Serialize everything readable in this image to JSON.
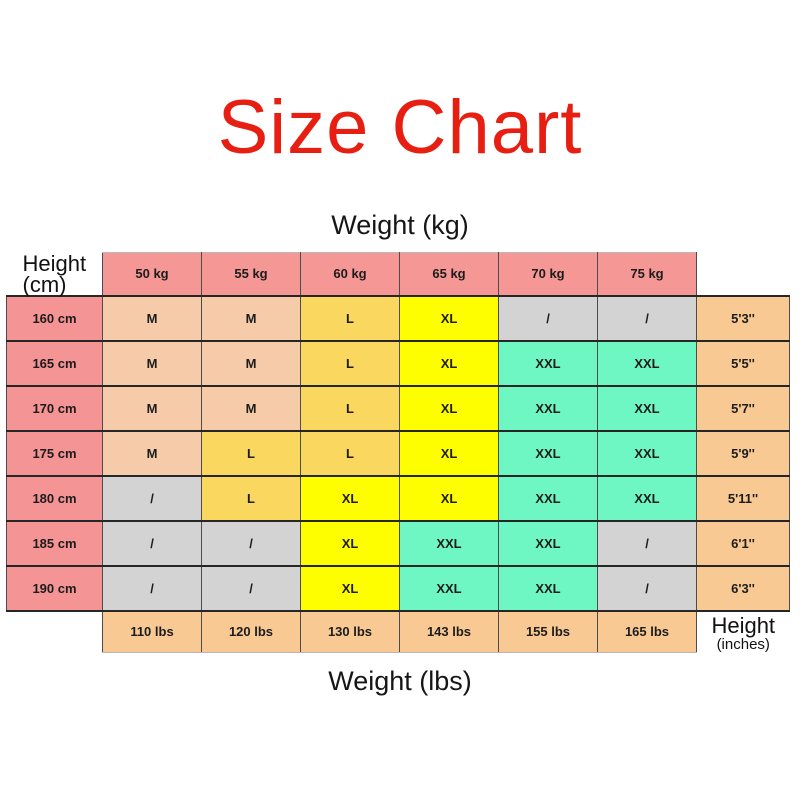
{
  "title": "Size Chart",
  "labels": {
    "weight_kg": "Weight (kg)",
    "weight_lbs": "Weight (lbs)",
    "height_cm_line1": "Height",
    "height_cm_line2": "(cm)",
    "height_in_line1": "Height",
    "height_in_line2": "(inches)"
  },
  "colors": {
    "title-red": "#e71f13",
    "text-dark": "#1a1a1a",
    "header-pink": "#f59795",
    "row-pink": "#f59494",
    "peach-band": "#f9c994"
  },
  "chart_data": {
    "type": "table",
    "title": "Size Chart",
    "top_axis": "Weight (kg)",
    "bottom_axis": "Weight (lbs)",
    "weight_kg_headers": [
      "50 kg",
      "55 kg",
      "60 kg",
      "65 kg",
      "70 kg",
      "75 kg"
    ],
    "weight_lbs_footers": [
      "110 lbs",
      "120 lbs",
      "130 lbs",
      "143 lbs",
      "155 lbs",
      "165 lbs"
    ],
    "rows": [
      {
        "height_cm": "160 cm",
        "height_in": "5'3''",
        "sizes": [
          "M",
          "M",
          "L",
          "XL",
          "/",
          "/"
        ]
      },
      {
        "height_cm": "165 cm",
        "height_in": "5'5''",
        "sizes": [
          "M",
          "M",
          "L",
          "XL",
          "XXL",
          "XXL"
        ]
      },
      {
        "height_cm": "170 cm",
        "height_in": "5'7''",
        "sizes": [
          "M",
          "M",
          "L",
          "XL",
          "XXL",
          "XXL"
        ]
      },
      {
        "height_cm": "175 cm",
        "height_in": "5'9''",
        "sizes": [
          "M",
          "L",
          "L",
          "XL",
          "XXL",
          "XXL"
        ]
      },
      {
        "height_cm": "180 cm",
        "height_in": "5'11''",
        "sizes": [
          "/",
          "L",
          "XL",
          "XL",
          "XXL",
          "XXL"
        ]
      },
      {
        "height_cm": "185 cm",
        "height_in": "6'1''",
        "sizes": [
          "/",
          "/",
          "XL",
          "XXL",
          "XXL",
          "/"
        ]
      },
      {
        "height_cm": "190 cm",
        "height_in": "6'3''",
        "sizes": [
          "/",
          "/",
          "XL",
          "XXL",
          "XXL",
          "/"
        ]
      }
    ],
    "size_colors": {
      "M": "#f6cbaa",
      "L": "#fad85f",
      "XL": "#fefe00",
      "XXL": "#6ff7c3",
      "/": "#d3d3d3"
    }
  }
}
